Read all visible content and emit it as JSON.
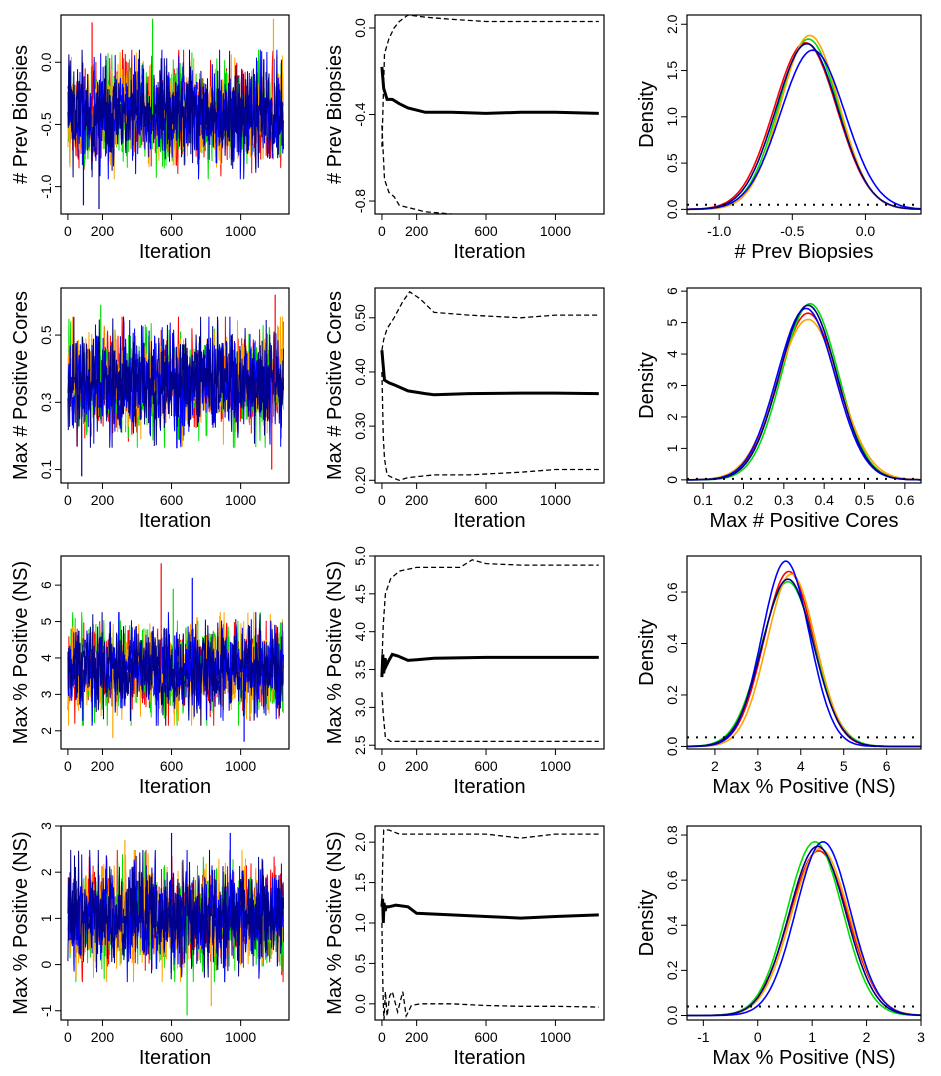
{
  "colors": {
    "chain_1": "#ff0000",
    "chain_2": "#00dd00",
    "chain_3": "#ffa500",
    "chain_4": "#0000ff",
    "chain_5": "#00008b",
    "running_mean": "#000000",
    "interval": "#000000"
  },
  "chart_data": [
    {
      "row": 1,
      "panel": "trace",
      "type": "line",
      "xlabel": "Iteration",
      "ylabel": "# Prev Biopsies",
      "xlim": [
        -40,
        1280
      ],
      "ylim": [
        -1.22,
        0.38
      ],
      "xticks": [
        "0",
        "200",
        "600",
        "1000"
      ],
      "xtick_values": [
        0,
        200,
        600,
        1000
      ],
      "yticks": [
        "-1.0",
        "-0.5",
        "0.0"
      ],
      "ytick_values": [
        -1.0,
        -0.5,
        0.0
      ],
      "series_count": 5,
      "iterations": 1250,
      "center": -0.42,
      "spread": 0.2,
      "extremes": [
        [
          140,
          0.32,
          0
        ],
        [
          490,
          0.35,
          1
        ],
        [
          1190,
          0.35,
          2
        ],
        [
          90,
          -1.15,
          3
        ],
        [
          180,
          -1.18,
          4
        ]
      ]
    },
    {
      "row": 1,
      "panel": "running_mean",
      "type": "line",
      "xlabel": "Iteration",
      "ylabel": "# Prev Biopsies",
      "xlim": [
        -40,
        1280
      ],
      "ylim": [
        -0.86,
        0.06
      ],
      "xticks": [
        "0",
        "200",
        "600",
        "1000"
      ],
      "xtick_values": [
        0,
        200,
        600,
        1000
      ],
      "yticks": [
        "-0.8",
        "-0.4",
        "0.0"
      ],
      "ytick_values": [
        -0.8,
        -0.4,
        0.0
      ],
      "mean": [
        [
          0,
          -0.18
        ],
        [
          10,
          -0.28
        ],
        [
          30,
          -0.33
        ],
        [
          60,
          -0.33
        ],
        [
          100,
          -0.35
        ],
        [
          150,
          -0.37
        ],
        [
          250,
          -0.39
        ],
        [
          400,
          -0.39
        ],
        [
          600,
          -0.395
        ],
        [
          800,
          -0.39
        ],
        [
          1000,
          -0.39
        ],
        [
          1250,
          -0.395
        ]
      ],
      "upper": [
        [
          0,
          -0.55
        ],
        [
          15,
          -0.12
        ],
        [
          40,
          -0.05
        ],
        [
          70,
          0.0
        ],
        [
          100,
          0.03
        ],
        [
          150,
          0.06
        ],
        [
          250,
          0.05
        ],
        [
          400,
          0.04
        ],
        [
          600,
          0.03
        ],
        [
          800,
          0.03
        ],
        [
          1000,
          0.03
        ],
        [
          1250,
          0.03
        ]
      ],
      "lower": [
        [
          0,
          -0.45
        ],
        [
          15,
          -0.7
        ],
        [
          40,
          -0.76
        ],
        [
          70,
          -0.78
        ],
        [
          100,
          -0.82
        ],
        [
          150,
          -0.83
        ],
        [
          250,
          -0.85
        ],
        [
          400,
          -0.86
        ],
        [
          600,
          -0.87
        ],
        [
          800,
          -0.87
        ],
        [
          1000,
          -0.87
        ],
        [
          1250,
          -0.88
        ]
      ]
    },
    {
      "row": 1,
      "panel": "density",
      "type": "line",
      "xlabel": "# Prev Biopsies",
      "ylabel": "Density",
      "xlim": [
        -1.22,
        0.38
      ],
      "ylim": [
        -0.05,
        2.1
      ],
      "xticks": [
        "-1.0",
        "-0.5",
        "0.0"
      ],
      "xtick_values": [
        -1.0,
        -0.5,
        0.0
      ],
      "yticks": [
        "0.0",
        "0.5",
        "1.0",
        "1.5",
        "2.0"
      ],
      "ytick_values": [
        0,
        0.5,
        1.0,
        1.5,
        2.0
      ],
      "curves": [
        {
          "mu": -0.41,
          "sigma": 0.215,
          "peak": 1.8
        },
        {
          "mu": -0.39,
          "sigma": 0.205,
          "peak": 1.84
        },
        {
          "mu": -0.38,
          "sigma": 0.2,
          "peak": 1.88
        },
        {
          "mu": -0.36,
          "sigma": 0.22,
          "peak": 1.72
        },
        {
          "mu": -0.4,
          "sigma": 0.212,
          "peak": 1.79
        }
      ],
      "prior_level": 0.05
    },
    {
      "row": 2,
      "panel": "trace",
      "type": "line",
      "xlabel": "Iteration",
      "ylabel": "Max # Positive Cores",
      "xlim": [
        -40,
        1280
      ],
      "ylim": [
        0.06,
        0.64
      ],
      "xticks": [
        "0",
        "200",
        "600",
        "1000"
      ],
      "xtick_values": [
        0,
        200,
        600,
        1000
      ],
      "yticks": [
        "0.1",
        "0.3",
        "0.5"
      ],
      "ytick_values": [
        0.1,
        0.3,
        0.5
      ],
      "series_count": 5,
      "iterations": 1250,
      "center": 0.36,
      "spread": 0.075,
      "extremes": [
        [
          190,
          0.59,
          1
        ],
        [
          1200,
          0.62,
          0
        ],
        [
          80,
          0.08,
          4
        ],
        [
          1180,
          0.1,
          0
        ]
      ]
    },
    {
      "row": 2,
      "panel": "running_mean",
      "type": "line",
      "xlabel": "Iteration",
      "ylabel": "Max # Positive Cores",
      "xlim": [
        -40,
        1280
      ],
      "ylim": [
        0.195,
        0.555
      ],
      "xticks": [
        "0",
        "200",
        "600",
        "1000"
      ],
      "xtick_values": [
        0,
        200,
        600,
        1000
      ],
      "yticks": [
        "0.20",
        "0.30",
        "0.40",
        "0.50"
      ],
      "ytick_values": [
        0.2,
        0.3,
        0.4,
        0.5
      ],
      "mean": [
        [
          0,
          0.44
        ],
        [
          5,
          0.42
        ],
        [
          15,
          0.385
        ],
        [
          40,
          0.38
        ],
        [
          80,
          0.375
        ],
        [
          150,
          0.365
        ],
        [
          250,
          0.36
        ],
        [
          300,
          0.358
        ],
        [
          500,
          0.36
        ],
        [
          800,
          0.361
        ],
        [
          1000,
          0.361
        ],
        [
          1250,
          0.36
        ]
      ],
      "upper": [
        [
          0,
          0.44
        ],
        [
          10,
          0.46
        ],
        [
          30,
          0.48
        ],
        [
          70,
          0.5
        ],
        [
          120,
          0.53
        ],
        [
          160,
          0.548
        ],
        [
          220,
          0.535
        ],
        [
          300,
          0.51
        ],
        [
          500,
          0.505
        ],
        [
          800,
          0.5
        ],
        [
          1000,
          0.505
        ],
        [
          1250,
          0.505
        ]
      ],
      "lower": [
        [
          0,
          0.4
        ],
        [
          8,
          0.28
        ],
        [
          15,
          0.24
        ],
        [
          30,
          0.21
        ],
        [
          60,
          0.205
        ],
        [
          100,
          0.2
        ],
        [
          150,
          0.205
        ],
        [
          300,
          0.21
        ],
        [
          500,
          0.21
        ],
        [
          800,
          0.215
        ],
        [
          1000,
          0.22
        ],
        [
          1250,
          0.22
        ]
      ]
    },
    {
      "row": 2,
      "panel": "density",
      "type": "line",
      "xlabel": "Max # Positive Cores",
      "ylabel": "Density",
      "xlim": [
        0.06,
        0.64
      ],
      "ylim": [
        -0.1,
        6.1
      ],
      "xticks": [
        "0.1",
        "0.2",
        "0.3",
        "0.4",
        "0.5",
        "0.6"
      ],
      "xtick_values": [
        0.1,
        0.2,
        0.3,
        0.4,
        0.5,
        0.6
      ],
      "yticks": [
        "0",
        "1",
        "2",
        "3",
        "4",
        "5",
        "6"
      ],
      "ytick_values": [
        0,
        1,
        2,
        3,
        4,
        5,
        6
      ],
      "curves": [
        {
          "mu": 0.36,
          "sigma": 0.073,
          "peak": 5.3
        },
        {
          "mu": 0.365,
          "sigma": 0.07,
          "peak": 5.6
        },
        {
          "mu": 0.36,
          "sigma": 0.077,
          "peak": 5.1
        },
        {
          "mu": 0.355,
          "sigma": 0.072,
          "peak": 5.45
        },
        {
          "mu": 0.36,
          "sigma": 0.071,
          "peak": 5.55
        }
      ],
      "prior_level": 0.03
    },
    {
      "row": 3,
      "panel": "trace",
      "type": "line",
      "xlabel": "Iteration",
      "ylabel": "Max % Positive (NS)",
      "xlim": [
        -40,
        1280
      ],
      "ylim": [
        1.5,
        6.8
      ],
      "xticks": [
        "0",
        "200",
        "600",
        "1000"
      ],
      "xtick_values": [
        0,
        200,
        600,
        1000
      ],
      "yticks": [
        "2",
        "3",
        "4",
        "5",
        "6"
      ],
      "ytick_values": [
        2,
        3,
        4,
        5,
        6
      ],
      "series_count": 5,
      "iterations": 1250,
      "center": 3.7,
      "spread": 0.6,
      "extremes": [
        [
          540,
          6.6,
          0
        ],
        [
          720,
          6.2,
          3
        ],
        [
          610,
          5.9,
          1
        ],
        [
          260,
          1.8,
          2
        ],
        [
          1020,
          1.7,
          3
        ]
      ]
    },
    {
      "row": 3,
      "panel": "running_mean",
      "type": "line",
      "xlabel": "Iteration",
      "ylabel": "Max % Positive (NS)",
      "xlim": [
        -40,
        1280
      ],
      "ylim": [
        2.45,
        5.0
      ],
      "xticks": [
        "0",
        "200",
        "600",
        "1000"
      ],
      "xtick_values": [
        0,
        200,
        600,
        1000
      ],
      "yticks": [
        "2.5",
        "3.0",
        "3.5",
        "4.0",
        "4.5",
        "5.0"
      ],
      "ytick_values": [
        2.5,
        3.0,
        3.5,
        4.0,
        4.5,
        5.0
      ],
      "mean": [
        [
          0,
          3.4
        ],
        [
          5,
          3.7
        ],
        [
          10,
          3.45
        ],
        [
          18,
          3.65
        ],
        [
          25,
          3.55
        ],
        [
          40,
          3.62
        ],
        [
          60,
          3.7
        ],
        [
          90,
          3.68
        ],
        [
          150,
          3.62
        ],
        [
          200,
          3.63
        ],
        [
          300,
          3.65
        ],
        [
          600,
          3.66
        ],
        [
          1000,
          3.66
        ],
        [
          1250,
          3.66
        ]
      ],
      "upper": [
        [
          0,
          3.6
        ],
        [
          8,
          4.1
        ],
        [
          20,
          4.5
        ],
        [
          50,
          4.7
        ],
        [
          100,
          4.8
        ],
        [
          200,
          4.85
        ],
        [
          300,
          4.85
        ],
        [
          450,
          4.85
        ],
        [
          520,
          4.95
        ],
        [
          600,
          4.9
        ],
        [
          800,
          4.88
        ],
        [
          1000,
          4.88
        ],
        [
          1250,
          4.88
        ]
      ],
      "lower": [
        [
          0,
          3.2
        ],
        [
          8,
          2.9
        ],
        [
          20,
          2.6
        ],
        [
          50,
          2.55
        ],
        [
          100,
          2.55
        ],
        [
          200,
          2.55
        ],
        [
          400,
          2.55
        ],
        [
          600,
          2.55
        ],
        [
          800,
          2.55
        ],
        [
          1000,
          2.55
        ],
        [
          1250,
          2.55
        ]
      ]
    },
    {
      "row": 3,
      "panel": "density",
      "type": "line",
      "xlabel": "Max % Positive (NS)",
      "ylabel": "Density",
      "xlim": [
        1.35,
        6.8
      ],
      "ylim": [
        -0.01,
        0.74
      ],
      "xticks": [
        "2",
        "3",
        "4",
        "5",
        "6"
      ],
      "xtick_values": [
        2,
        3,
        4,
        5,
        6
      ],
      "yticks": [
        "0.0",
        "0.2",
        "0.4",
        "0.6"
      ],
      "ytick_values": [
        0,
        0.2,
        0.4,
        0.6
      ],
      "curves": [
        {
          "mu": 3.72,
          "sigma": 0.58,
          "peak": 0.68
        },
        {
          "mu": 3.7,
          "sigma": 0.62,
          "peak": 0.64
        },
        {
          "mu": 3.78,
          "sigma": 0.57,
          "peak": 0.67
        },
        {
          "mu": 3.65,
          "sigma": 0.55,
          "peak": 0.72
        },
        {
          "mu": 3.7,
          "sigma": 0.6,
          "peak": 0.65
        }
      ],
      "prior_level": 0.035
    },
    {
      "row": 4,
      "panel": "trace",
      "type": "line",
      "xlabel": "Iteration",
      "ylabel": "Max % Positive (NS)",
      "xlim": [
        -40,
        1280
      ],
      "ylim": [
        -1.2,
        3.0
      ],
      "xticks": [
        "0",
        "200",
        "600",
        "1000"
      ],
      "xtick_values": [
        0,
        200,
        600,
        1000
      ],
      "yticks": [
        "-1",
        "0",
        "1",
        "2",
        "3"
      ],
      "ytick_values": [
        -1,
        0,
        1,
        2,
        3
      ],
      "series_count": 5,
      "iterations": 1250,
      "center": 1.05,
      "spread": 0.55,
      "extremes": [
        [
          690,
          -1.1,
          1
        ],
        [
          830,
          -0.9,
          2
        ],
        [
          600,
          2.85,
          3
        ],
        [
          940,
          2.85,
          3
        ],
        [
          330,
          2.7,
          2
        ]
      ]
    },
    {
      "row": 4,
      "panel": "running_mean",
      "type": "line",
      "xlabel": "Iteration",
      "ylabel": "Max % Positive (NS)",
      "xlim": [
        -40,
        1280
      ],
      "ylim": [
        -0.2,
        2.2
      ],
      "xticks": [
        "0",
        "200",
        "600",
        "1000"
      ],
      "xtick_values": [
        0,
        200,
        600,
        1000
      ],
      "yticks": [
        "0.0",
        "0.5",
        "1.0",
        "1.5",
        "2.0"
      ],
      "ytick_values": [
        0,
        0.5,
        1.0,
        1.5,
        2.0
      ],
      "mean": [
        [
          0,
          1.2
        ],
        [
          4,
          1.3
        ],
        [
          8,
          1.0
        ],
        [
          12,
          1.25
        ],
        [
          18,
          1.15
        ],
        [
          25,
          1.2
        ],
        [
          40,
          1.2
        ],
        [
          80,
          1.22
        ],
        [
          150,
          1.2
        ],
        [
          200,
          1.12
        ],
        [
          400,
          1.1
        ],
        [
          600,
          1.08
        ],
        [
          800,
          1.06
        ],
        [
          1000,
          1.08
        ],
        [
          1250,
          1.1
        ]
      ],
      "upper": [
        [
          0,
          1.3
        ],
        [
          5,
          1.8
        ],
        [
          10,
          2.15
        ],
        [
          40,
          2.15
        ],
        [
          100,
          2.1
        ],
        [
          200,
          2.1
        ],
        [
          400,
          2.1
        ],
        [
          600,
          2.1
        ],
        [
          800,
          2.05
        ],
        [
          1000,
          2.1
        ],
        [
          1250,
          2.1
        ]
      ],
      "lower": [
        [
          0,
          1.0
        ],
        [
          4,
          0.4
        ],
        [
          8,
          0.0
        ],
        [
          12,
          -0.2
        ],
        [
          20,
          0.15
        ],
        [
          30,
          -0.15
        ],
        [
          45,
          0.1
        ],
        [
          60,
          0.15
        ],
        [
          90,
          -0.1
        ],
        [
          120,
          0.15
        ],
        [
          140,
          -0.15
        ],
        [
          170,
          -0.02
        ],
        [
          220,
          0.0
        ],
        [
          400,
          0.0
        ],
        [
          600,
          -0.02
        ],
        [
          800,
          -0.03
        ],
        [
          1000,
          -0.03
        ],
        [
          1250,
          -0.04
        ]
      ]
    },
    {
      "row": 4,
      "panel": "density",
      "type": "line",
      "xlabel": "Max % Positive (NS)",
      "ylabel": "Density",
      "xlim": [
        -1.3,
        3.0
      ],
      "ylim": [
        -0.02,
        0.84
      ],
      "xticks": [
        "-1",
        "0",
        "1",
        "2",
        "3"
      ],
      "xtick_values": [
        -1,
        0,
        1,
        2,
        3
      ],
      "yticks": [
        "0.0",
        "0.2",
        "0.4",
        "0.6",
        "0.8"
      ],
      "ytick_values": [
        0,
        0.2,
        0.4,
        0.6,
        0.8
      ],
      "curves": [
        {
          "mu": 1.12,
          "sigma": 0.54,
          "peak": 0.73
        },
        {
          "mu": 1.05,
          "sigma": 0.51,
          "peak": 0.77
        },
        {
          "mu": 1.15,
          "sigma": 0.53,
          "peak": 0.74
        },
        {
          "mu": 1.2,
          "sigma": 0.5,
          "peak": 0.77
        },
        {
          "mu": 1.1,
          "sigma": 0.52,
          "peak": 0.75
        }
      ],
      "prior_level": 0.04
    }
  ]
}
